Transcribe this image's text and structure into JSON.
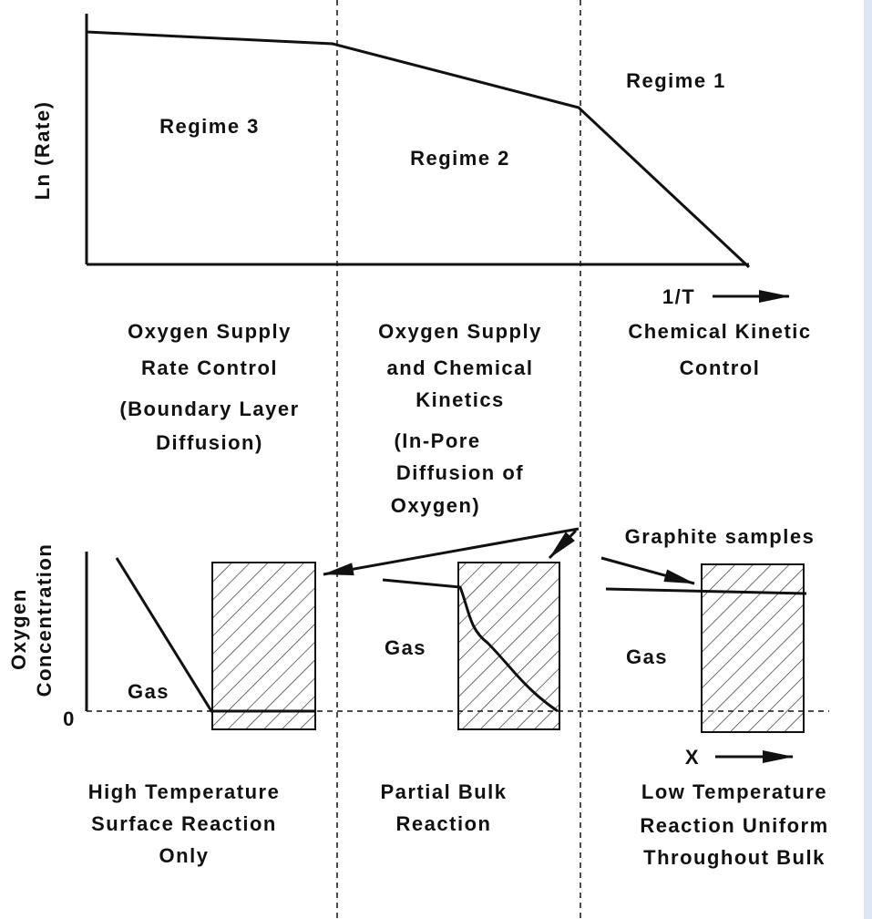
{
  "top": {
    "y_label": "Ln (Rate)",
    "x_label": "1/T",
    "regimes": [
      "Regime 3",
      "Regime 2",
      "Regime 1"
    ]
  },
  "columns": [
    {
      "lines": [
        "Oxygen Supply",
        "Rate Control",
        "(Boundary Layer",
        "Diffusion)"
      ]
    },
    {
      "lines": [
        "Oxygen Supply",
        "and Chemical",
        "Kinetics",
        "(In-Pore",
        "Diffusion of",
        "Oxygen)"
      ]
    },
    {
      "lines": [
        "Chemical Kinetic",
        "Control"
      ]
    }
  ],
  "bottom": {
    "y_label": [
      "Oxygen",
      "Concentration"
    ],
    "zero": "0",
    "gas": [
      "Gas",
      "Gas",
      "Gas"
    ],
    "samples": "Graphite samples",
    "x_label": "X"
  },
  "captions": [
    {
      "lines": [
        "High Temperature",
        "Surface Reaction",
        "Only"
      ]
    },
    {
      "lines": [
        "Partial Bulk",
        "Reaction"
      ]
    },
    {
      "lines": [
        "Low Temperature",
        "Reaction Uniform",
        "Throughout Bulk"
      ]
    }
  ]
}
